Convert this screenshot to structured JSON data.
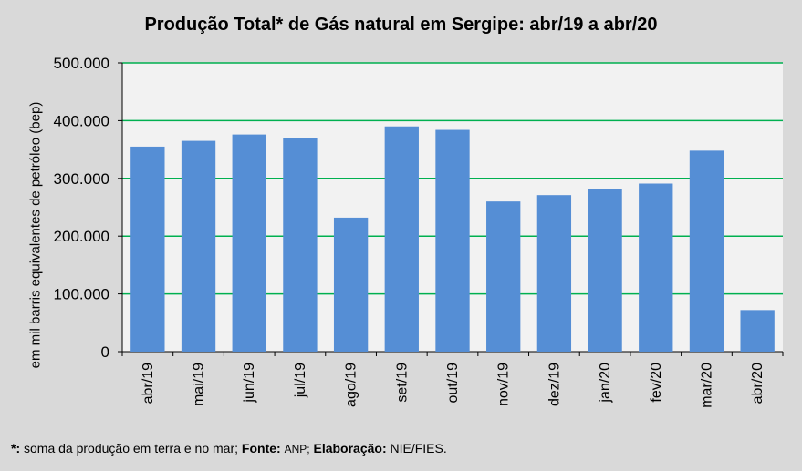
{
  "chart_data": {
    "type": "bar",
    "title": "Produção Total* de Gás natural em Sergipe: abr/19 a abr/20",
    "ylabel": "em mil barris equivalentes de petróleo (bep)",
    "xlabel": "",
    "categories": [
      "abr/19",
      "mai/19",
      "jun/19",
      "jul/19",
      "ago/19",
      "set/19",
      "out/19",
      "nov/19",
      "dez/19",
      "jan/20",
      "fev/20",
      "mar/20",
      "abr/20"
    ],
    "values": [
      355000,
      365000,
      376000,
      370000,
      232000,
      390000,
      384000,
      260000,
      271000,
      281000,
      291000,
      348000,
      72000
    ],
    "ylim": [
      0,
      500000
    ],
    "yticks": [
      0,
      100000,
      200000,
      300000,
      400000,
      500000
    ],
    "ytick_labels": [
      "0",
      "100.000",
      "200.000",
      "300.000",
      "400.000",
      "500.000"
    ],
    "grid": true,
    "colors": {
      "bar": "#558ed5",
      "grid": "#00b050",
      "plot_bg": "#f2f2f2",
      "background": "#d9d9d9"
    }
  },
  "footnote": {
    "marker": "*:",
    "text1": " soma da produção em terra e no mar;",
    "fonte_label": "Fonte:",
    "fonte_value": "ANP;",
    "elab_label": "Elaboração:",
    "elab_value": "NIE/FIES."
  }
}
